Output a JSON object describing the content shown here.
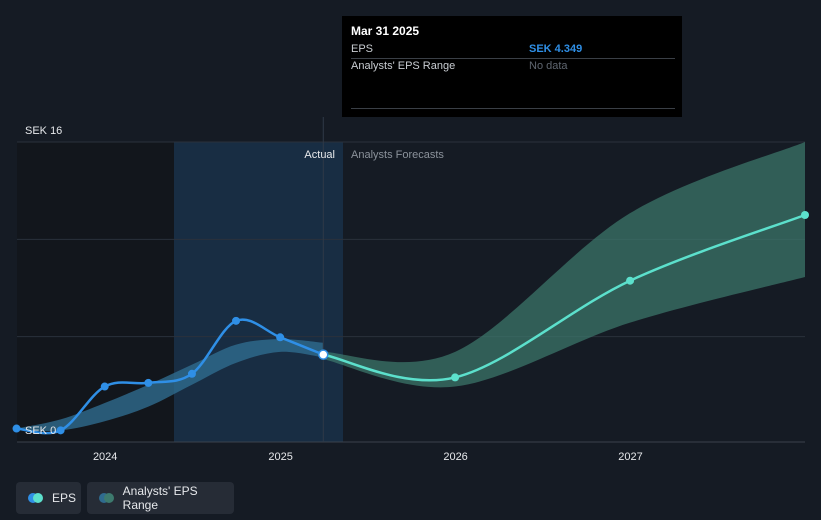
{
  "tooltip": {
    "date": "Mar 31 2025",
    "rows": [
      {
        "label": "EPS",
        "value": "SEK 4.349"
      },
      {
        "label": "Analysts' EPS Range",
        "value": "No data"
      }
    ]
  },
  "chart_data": {
    "type": "line",
    "y_axis": {
      "min": 0,
      "max": 16,
      "tick_labels": [
        {
          "label": "SEK 16",
          "value": 16
        },
        {
          "label": "SEK 0",
          "value": 0
        }
      ]
    },
    "x_axis": {
      "range": [
        "2023-07-01",
        "2027-12-31"
      ],
      "tick_labels": [
        {
          "label": "2024",
          "date": "2024-01-01"
        },
        {
          "label": "2025",
          "date": "2025-01-01"
        },
        {
          "label": "2026",
          "date": "2026-01-01"
        },
        {
          "label": "2027",
          "date": "2027-01-01"
        }
      ]
    },
    "divider_date": "2025-03-31",
    "section_labels": {
      "actual": "Actual",
      "forecast": "Analysts Forecasts"
    },
    "series": [
      {
        "name": "EPS",
        "color": "#2f8fe6",
        "points": [
          {
            "date": "2023-06-30",
            "value": 0.3
          },
          {
            "date": "2023-09-30",
            "value": 0.2
          },
          {
            "date": "2023-12-31",
            "value": 2.6
          },
          {
            "date": "2024-03-31",
            "value": 2.8
          },
          {
            "date": "2024-06-30",
            "value": 3.3
          },
          {
            "date": "2024-09-30",
            "value": 6.2
          },
          {
            "date": "2024-12-31",
            "value": 5.3
          },
          {
            "date": "2025-03-31",
            "value": 4.349
          }
        ]
      },
      {
        "name": "Forecast",
        "color": "#5ce0cc",
        "points": [
          {
            "date": "2025-03-31",
            "value": 4.349
          },
          {
            "date": "2025-12-31",
            "value": 3.1
          },
          {
            "date": "2026-12-31",
            "value": 8.4
          },
          {
            "date": "2027-12-31",
            "value": 12.0
          }
        ]
      }
    ],
    "actual_band": [
      {
        "date": "2023-06-30",
        "low": 0.2,
        "high": 0.3
      },
      {
        "date": "2023-09-30",
        "low": 0.2,
        "high": 0.8
      },
      {
        "date": "2023-12-31",
        "low": 0.7,
        "high": 1.7
      },
      {
        "date": "2024-03-31",
        "low": 1.5,
        "high": 2.7
      },
      {
        "date": "2024-06-30",
        "low": 2.7,
        "high": 3.8
      },
      {
        "date": "2024-09-30",
        "low": 3.9,
        "high": 4.9
      },
      {
        "date": "2024-12-31",
        "low": 4.5,
        "high": 5.2
      },
      {
        "date": "2025-03-31",
        "low": 4.2,
        "high": 5.0
      }
    ],
    "forecast_band": [
      {
        "date": "2025-03-31",
        "low": 4.1,
        "high": 4.5
      },
      {
        "date": "2025-12-31",
        "low": 2.6,
        "high": 4.5
      },
      {
        "date": "2026-12-31",
        "low": 6.1,
        "high": 12.1
      },
      {
        "date": "2027-12-31",
        "low": 8.6,
        "high": 16.0
      }
    ],
    "legend": [
      {
        "label": "EPS",
        "colors": [
          "#2f8fe6",
          "#5ce0cc"
        ]
      },
      {
        "label": "Analysts' EPS Range",
        "colors": [
          "#2f6b8f",
          "#3d7a6e"
        ]
      }
    ]
  }
}
